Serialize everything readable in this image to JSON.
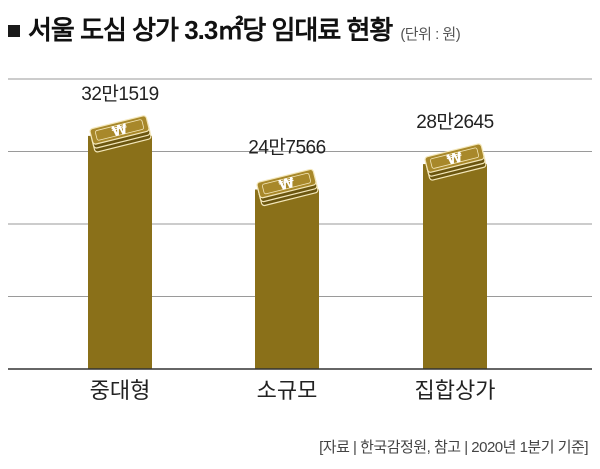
{
  "title": "서울 도심 상가 3.3㎡당 임대료 현황",
  "unit": "(단위 : 원)",
  "source": "[자료 | 한국감정원, 참고 | 2020년 1분기 기준]",
  "colors": {
    "bar": "#8a7019",
    "bar_dark": "#6b560f",
    "coin_top": "#a8882a",
    "grid": "#9a9a9a",
    "axis": "#333333"
  },
  "icon": "won-money-stack-icon",
  "chart_data": {
    "type": "bar",
    "categories": [
      "중대형",
      "소규모",
      "집합상가"
    ],
    "values": [
      321519,
      247566,
      282645
    ],
    "value_labels": [
      "32만1519",
      "24만7566",
      "28만2645"
    ],
    "title": "서울 도심 상가 3.3㎡당 임대료 현황",
    "xlabel": "",
    "ylabel": "",
    "ylim": [
      0,
      400000
    ],
    "grid": true
  }
}
